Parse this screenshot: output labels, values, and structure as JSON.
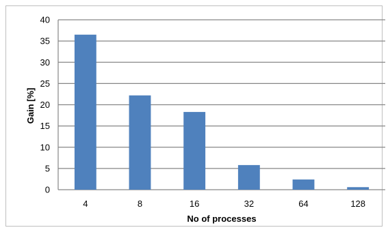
{
  "chart_data": {
    "type": "bar",
    "categories": [
      "4",
      "8",
      "16",
      "32",
      "64",
      "128"
    ],
    "series": [
      {
        "color": "#4f81bd",
        "values": [
          36.5,
          22.2,
          18.3,
          5.8,
          2.4,
          0.6
        ]
      }
    ],
    "xlabel": "No of processes",
    "ylabel": "Gain [%]",
    "ylim": [
      0,
      40
    ],
    "yticks": [
      0,
      5,
      10,
      15,
      20,
      25,
      30,
      35,
      40
    ],
    "grid": true,
    "gridline_color": "#868686",
    "legend": "none"
  }
}
